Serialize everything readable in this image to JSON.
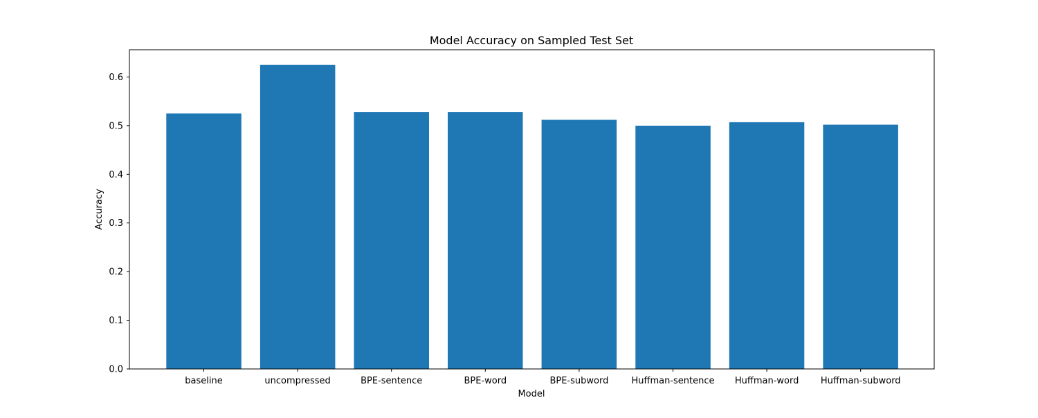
{
  "chart_data": {
    "type": "bar",
    "title": "Model Accuracy on Sampled Test Set",
    "xlabel": "Model",
    "ylabel": "Accuracy",
    "categories": [
      "baseline",
      "uncompressed",
      "BPE-sentence",
      "BPE-word",
      "BPE-subword",
      "Huffman-sentence",
      "Huffman-word",
      "Huffman-subword"
    ],
    "values": [
      0.525,
      0.625,
      0.528,
      0.528,
      0.512,
      0.5,
      0.507,
      0.502
    ],
    "ylim": [
      0,
      0.656
    ],
    "yticks": [
      "0.0",
      "0.1",
      "0.2",
      "0.3",
      "0.4",
      "0.5",
      "0.6"
    ],
    "bar_color": "#1f77b4",
    "grid": false,
    "legend": "none"
  }
}
